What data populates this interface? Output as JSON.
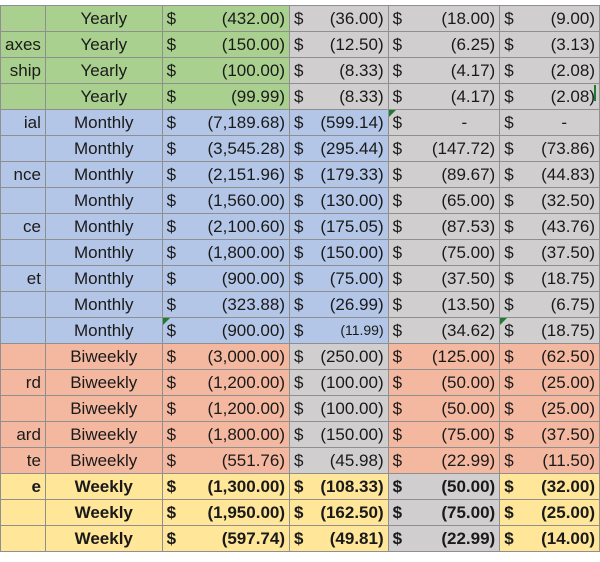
{
  "colors": {
    "green": "#a9d08e",
    "green_light": "#c6e0b4",
    "blue": "#b4c6e7",
    "blue_light": "#c9d7f0",
    "gray": "#d0cece",
    "salmon": "#f4b8a0",
    "yellow": "#ffe699",
    "white": "#ffffff",
    "tri": "#1f7a34"
  },
  "rows": [
    {
      "label": "",
      "freq": "Yearly",
      "group": "green",
      "bold": false,
      "a": "(432.00)",
      "b": "(36.00)",
      "c": "(18.00)",
      "d": "(9.00)"
    },
    {
      "label": "axes",
      "freq": "Yearly",
      "group": "green",
      "bold": false,
      "a": "(150.00)",
      "b": "(12.50)",
      "c": "(6.25)",
      "d": "(3.13)"
    },
    {
      "label": "ship",
      "freq": "Yearly",
      "group": "green",
      "bold": false,
      "a": "(100.00)",
      "b": "(8.33)",
      "c": "(4.17)",
      "d": "(2.08)"
    },
    {
      "label": "",
      "freq": "Yearly",
      "group": "green",
      "bold": false,
      "a": "(99.99)",
      "b": "(8.33)",
      "c": "(4.17)",
      "d": "(2.08)"
    },
    {
      "label": "ial",
      "freq": "Monthly",
      "group": "blue",
      "bold": false,
      "a": "(7,189.68)",
      "b": "(599.14)",
      "c": "-",
      "d": "-",
      "tri_c": true
    },
    {
      "label": "",
      "freq": "Monthly",
      "group": "blue",
      "bold": false,
      "a": "(3,545.28)",
      "b": "(295.44)",
      "c": "(147.72)",
      "d": "(73.86)"
    },
    {
      "label": "nce",
      "freq": "Monthly",
      "group": "blue",
      "bold": false,
      "a": "(2,151.96)",
      "b": "(179.33)",
      "c": "(89.67)",
      "d": "(44.83)"
    },
    {
      "label": "",
      "freq": "Monthly",
      "group": "blue",
      "bold": false,
      "a": "(1,560.00)",
      "b": "(130.00)",
      "c": "(65.00)",
      "d": "(32.50)"
    },
    {
      "label": "ce",
      "freq": "Monthly",
      "group": "blue",
      "bold": false,
      "a": "(2,100.60)",
      "b": "(175.05)",
      "c": "(87.53)",
      "d": "(43.76)"
    },
    {
      "label": "",
      "freq": "Monthly",
      "group": "blue",
      "bold": false,
      "a": "(1,800.00)",
      "b": "(150.00)",
      "c": "(75.00)",
      "d": "(37.50)"
    },
    {
      "label": "et",
      "freq": "Monthly",
      "group": "blue",
      "bold": false,
      "a": "(900.00)",
      "b": "(75.00)",
      "c": "(37.50)",
      "d": "(18.75)"
    },
    {
      "label": "",
      "freq": "Monthly",
      "group": "blue",
      "bold": false,
      "a": "(323.88)",
      "b": "(26.99)",
      "c": "(13.50)",
      "d": "(6.75)"
    },
    {
      "label": "",
      "freq": "Monthly",
      "group": "blue",
      "bold": false,
      "a": "(900.00)",
      "b": "(11.99)",
      "c": "(34.62)",
      "d": "(18.75)",
      "tri_a": true,
      "tri_d": true,
      "small_b": true
    },
    {
      "label": "",
      "freq": "Biweekly",
      "group": "salmon",
      "bold": false,
      "a": "(3,000.00)",
      "b": "(250.00)",
      "c": "(125.00)",
      "d": "(62.50)"
    },
    {
      "label": "rd",
      "freq": "Biweekly",
      "group": "salmon",
      "bold": false,
      "a": "(1,200.00)",
      "b": "(100.00)",
      "c": "(50.00)",
      "d": "(25.00)"
    },
    {
      "label": "",
      "freq": "Biweekly",
      "group": "salmon",
      "bold": false,
      "a": "(1,200.00)",
      "b": "(100.00)",
      "c": "(50.00)",
      "d": "(25.00)"
    },
    {
      "label": "ard",
      "freq": "Biweekly",
      "group": "salmon",
      "bold": false,
      "a": "(1,800.00)",
      "b": "(150.00)",
      "c": "(75.00)",
      "d": "(37.50)"
    },
    {
      "label": "te",
      "freq": "Biweekly",
      "group": "salmon",
      "bold": false,
      "a": "(551.76)",
      "b": "(45.98)",
      "c": "(22.99)",
      "d": "(11.50)"
    },
    {
      "label": "e",
      "freq": "Weekly",
      "group": "yellow",
      "bold": true,
      "a": "(1,300.00)",
      "b": "(108.33)",
      "c": "(50.00)",
      "d": "(32.00)"
    },
    {
      "label": "",
      "freq": "Weekly",
      "group": "yellow",
      "bold": true,
      "a": "(1,950.00)",
      "b": "(162.50)",
      "c": "(75.00)",
      "d": "(25.00)"
    },
    {
      "label": "",
      "freq": "Weekly",
      "group": "yellow",
      "bold": true,
      "a": "(597.74)",
      "b": "(49.81)",
      "c": "(22.99)",
      "d": "(14.00)"
    }
  ],
  "currency": "$"
}
